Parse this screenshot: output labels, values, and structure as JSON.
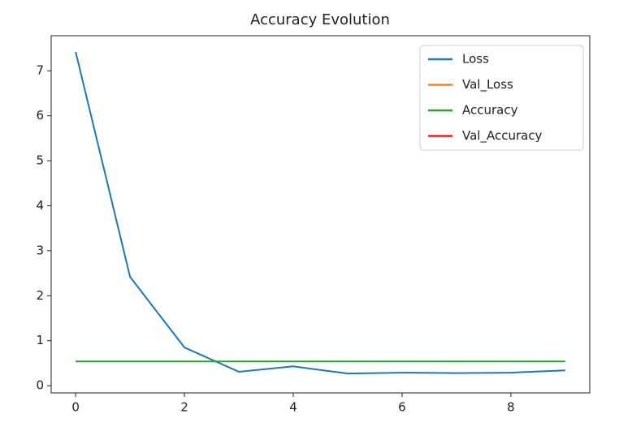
{
  "chart_data": {
    "type": "line",
    "title": "Accuracy Evolution",
    "x": [
      0,
      1,
      2,
      3,
      4,
      5,
      6,
      7,
      8,
      9
    ],
    "series": [
      {
        "name": "Loss",
        "color": "#1f77b4",
        "values": [
          7.42,
          2.42,
          0.85,
          0.31,
          0.43,
          0.27,
          0.29,
          0.28,
          0.29,
          0.34
        ]
      },
      {
        "name": "Val_Loss",
        "color": "#ff7f0e",
        "values": [
          null,
          null,
          null,
          null,
          null,
          null,
          null,
          null,
          null,
          null
        ]
      },
      {
        "name": "Accuracy",
        "color": "#2ca02c",
        "values": [
          0.54,
          0.54,
          0.54,
          0.54,
          0.54,
          0.54,
          0.54,
          0.54,
          0.54,
          0.54
        ]
      },
      {
        "name": "Val_Accuracy",
        "color": "#d62728",
        "values": [
          null,
          null,
          null,
          null,
          null,
          null,
          null,
          null,
          null,
          null
        ]
      }
    ],
    "xlim": [
      -0.45,
      9.45
    ],
    "ylim": [
      -0.16,
      7.78
    ],
    "xticks": [
      0,
      2,
      4,
      6,
      8
    ],
    "yticks": [
      0,
      1,
      2,
      3,
      4,
      5,
      6,
      7
    ],
    "legend": "upper right"
  }
}
